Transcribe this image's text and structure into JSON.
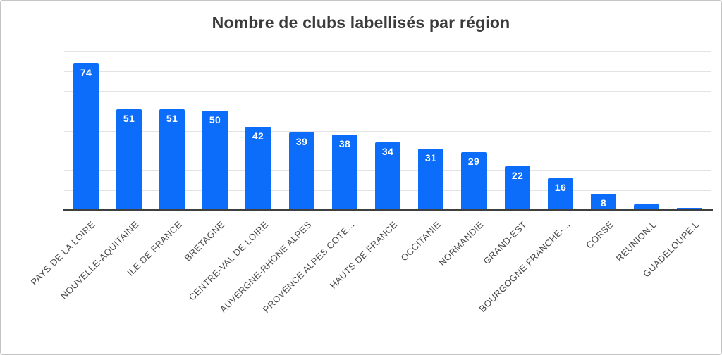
{
  "page": {
    "background": "#ffffff",
    "border_color": "#c4c4c4"
  },
  "chart_data": {
    "type": "bar",
    "title": "Nombre de clubs labellisés par région",
    "xlabel": "",
    "ylabel": "",
    "categories": [
      "PAYS DE LA LOIRE",
      "NOUVELLE-AQUITAINE",
      "ILE DE FRANCE",
      "BRETAGNE",
      "CENTRE-VAL DE LOIRE",
      "AUVERGNE-RHONE ALPES",
      "PROVENCE ALPES COTE...",
      "HAUTS DE FRANCE",
      "OCCITANIE",
      "NORMANDIE",
      "GRAND-EST",
      "BOURGOGNE FRANCHE-...",
      "CORSE",
      "REUNION.L",
      "GUADELOUPE.L"
    ],
    "values": [
      74,
      51,
      51,
      50,
      42,
      39,
      38,
      34,
      31,
      29,
      22,
      16,
      8,
      3,
      1
    ],
    "value_labels_shown": [
      true,
      true,
      true,
      true,
      true,
      true,
      true,
      true,
      true,
      true,
      true,
      true,
      true,
      false,
      false
    ],
    "ylim": [
      0,
      80
    ],
    "grid_step": 10,
    "grid": true,
    "legend": false,
    "y_tick_labels_shown": false,
    "colors": {
      "bar": "#0c6dfb",
      "value_label": "#ffffff",
      "grid": "#e3e3e3",
      "axis": "#3f3f3f",
      "title": "#3b3b3b",
      "x_label": "#4a4a4a"
    }
  }
}
